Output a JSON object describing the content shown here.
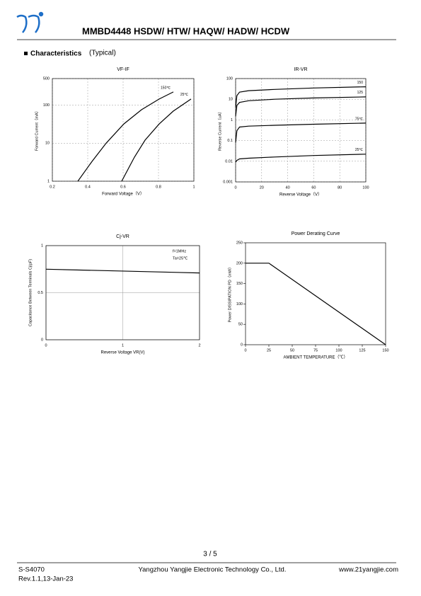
{
  "header": {
    "title": "MMBD4448 HSDW/ HTW/ HAQW/ HADW/ HCDW"
  },
  "section": {
    "title": "Characteristics",
    "subtitle": "(Typical)"
  },
  "chart_data": [
    {
      "type": "line",
      "title": "VF-IF",
      "x_label": "Forward Voltage（V）",
      "y_label": "Forward Current（mA）",
      "ylog": true,
      "grid": true,
      "grid_style": "dashed",
      "xlim": [
        0.2,
        1.0
      ],
      "xticks": [
        0.2,
        0.4,
        0.6,
        0.8,
        1.0
      ],
      "ylim": [
        1,
        500
      ],
      "yticks": [
        1,
        10,
        100,
        500
      ],
      "series": [
        {
          "name": "150℃",
          "color": "#000000",
          "x": [
            0.344,
            0.424,
            0.504,
            0.604,
            0.704,
            0.804,
            0.884
          ],
          "values": [
            1,
            3.3,
            10,
            32,
            76,
            145,
            222
          ]
        },
        {
          "name": "25℃",
          "color": "#000000",
          "x": [
            0.592,
            0.664,
            0.724,
            0.804,
            0.884,
            0.984
          ],
          "values": [
            1,
            4.3,
            12,
            32,
            70,
            145
          ]
        }
      ]
    },
    {
      "type": "line",
      "title": "IR-VR",
      "x_label": "Reverse Voltage（V）",
      "y_label": "Reverse Current（uA）",
      "ylog": true,
      "grid": true,
      "grid_style": "dashed",
      "xlim": [
        0,
        100
      ],
      "xticks": [
        0,
        20,
        40,
        60,
        80,
        100
      ],
      "ylim": [
        0.001,
        100
      ],
      "yticks": [
        0.001,
        0.01,
        0.1,
        1,
        10,
        100
      ],
      "series": [
        {
          "name": "150",
          "color": "#000000",
          "x": [
            0,
            1,
            3,
            10,
            30,
            60,
            100
          ],
          "values": [
            4,
            15,
            22,
            26,
            30,
            35,
            40
          ]
        },
        {
          "name": "125",
          "color": "#000000",
          "x": [
            0,
            1,
            3,
            10,
            30,
            60,
            100
          ],
          "values": [
            1.5,
            5,
            7,
            8.5,
            10,
            11.5,
            13
          ]
        },
        {
          "name": "75℃",
          "color": "#000000",
          "x": [
            0,
            1,
            3,
            10,
            30,
            60,
            100
          ],
          "values": [
            0.08,
            0.3,
            0.45,
            0.5,
            0.55,
            0.62,
            0.7
          ]
        },
        {
          "name": "25℃",
          "color": "#000000",
          "x": [
            0,
            1,
            3,
            10,
            30,
            60,
            100
          ],
          "values": [
            0.009,
            0.011,
            0.013,
            0.014,
            0.016,
            0.019,
            0.022
          ]
        }
      ]
    },
    {
      "type": "line",
      "title": "Cj-VR",
      "x_label": "Reverse Voltage  VR(V)",
      "y_label": "Capacitance Between Terminals Cj(pF)",
      "ylog": false,
      "grid": true,
      "grid_style": "solid",
      "xlim": [
        0,
        2
      ],
      "xticks": [
        0,
        1,
        2
      ],
      "ylim": [
        0,
        1
      ],
      "yticks": [
        0,
        0.5,
        1
      ],
      "annotations": [
        "f=1MHz",
        "Ta=25℃"
      ],
      "series": [
        {
          "color": "#000000",
          "x": [
            0,
            2
          ],
          "values": [
            0.75,
            0.71
          ]
        }
      ]
    },
    {
      "type": "line",
      "title": "Power Derating Curve",
      "x_label": "AMBIENT TEMPERATURE（℃）",
      "y_label": "Power DISSIPATION PD（mW）",
      "ylog": false,
      "grid": false,
      "xlim": [
        0,
        150
      ],
      "xticks": [
        0,
        25,
        50,
        75,
        100,
        125,
        150
      ],
      "ylim": [
        0,
        250
      ],
      "yticks": [
        0,
        50,
        100,
        150,
        200,
        250
      ],
      "series": [
        {
          "color": "#000000",
          "x": [
            0,
            25,
            150
          ],
          "values": [
            200,
            200,
            0
          ]
        }
      ]
    }
  ],
  "page": "3 / 5",
  "footer": {
    "doc_id": "S-S4070",
    "company": "Yangzhou Yangjie Electronic Technology Co., Ltd.",
    "website": "www.21yangjie.com",
    "revision": "Rev.1.1,13-Jan-23"
  }
}
